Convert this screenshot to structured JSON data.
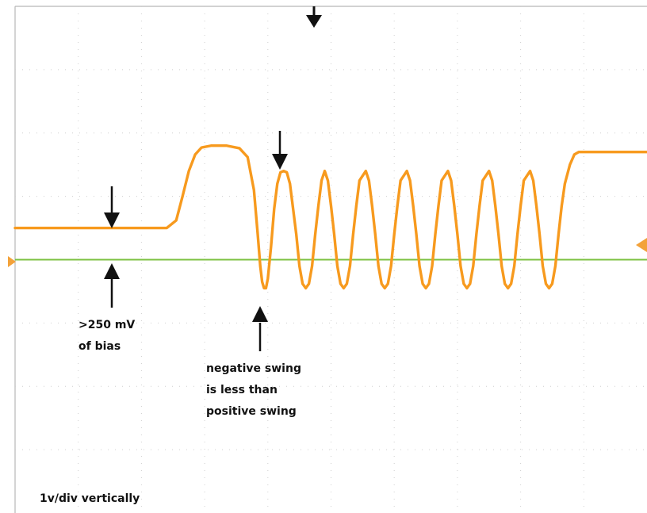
{
  "chart_data": {
    "type": "line",
    "grid": true,
    "vertical_scale": "1v/div",
    "x_range": [
      0,
      10
    ],
    "y_range": [
      -4,
      4
    ],
    "series": [
      {
        "color": "#f79a1e",
        "points": [
          [
            0.0,
            0.5
          ],
          [
            0.5,
            0.5
          ],
          [
            1.0,
            0.5
          ],
          [
            1.5,
            0.5
          ],
          [
            2.0,
            0.5
          ],
          [
            2.4,
            0.5
          ],
          [
            2.55,
            0.62
          ],
          [
            2.65,
            1.0
          ],
          [
            2.75,
            1.4
          ],
          [
            2.85,
            1.66
          ],
          [
            2.95,
            1.77
          ],
          [
            3.1,
            1.8
          ],
          [
            3.35,
            1.8
          ],
          [
            3.55,
            1.76
          ],
          [
            3.68,
            1.62
          ],
          [
            3.78,
            1.1
          ],
          [
            3.84,
            0.4
          ],
          [
            3.88,
            -0.1
          ],
          [
            3.91,
            -0.35
          ],
          [
            3.94,
            -0.45
          ],
          [
            3.97,
            -0.45
          ],
          [
            4.0,
            -0.3
          ],
          [
            4.05,
            0.2
          ],
          [
            4.1,
            0.8
          ],
          [
            4.15,
            1.2
          ],
          [
            4.2,
            1.38
          ],
          [
            4.25,
            1.4
          ],
          [
            4.3,
            1.38
          ],
          [
            4.35,
            1.2
          ],
          [
            4.4,
            0.8
          ],
          [
            4.45,
            0.4
          ],
          [
            4.5,
            -0.1
          ],
          [
            4.55,
            -0.38
          ],
          [
            4.6,
            -0.45
          ],
          [
            4.65,
            -0.38
          ],
          [
            4.7,
            -0.1
          ],
          [
            4.75,
            0.4
          ],
          [
            4.8,
            0.85
          ],
          [
            4.85,
            1.25
          ],
          [
            4.9,
            1.4
          ],
          [
            4.95,
            1.25
          ],
          [
            5.0,
            0.85
          ],
          [
            5.05,
            0.4
          ],
          [
            5.1,
            -0.1
          ],
          [
            5.15,
            -0.38
          ],
          [
            5.2,
            -0.45
          ],
          [
            5.25,
            -0.38
          ],
          [
            5.3,
            -0.1
          ],
          [
            5.35,
            0.4
          ],
          [
            5.4,
            0.85
          ],
          [
            5.45,
            1.25
          ],
          [
            5.55,
            1.4
          ],
          [
            5.6,
            1.25
          ],
          [
            5.65,
            0.85
          ],
          [
            5.7,
            0.4
          ],
          [
            5.75,
            -0.1
          ],
          [
            5.8,
            -0.38
          ],
          [
            5.85,
            -0.45
          ],
          [
            5.9,
            -0.38
          ],
          [
            5.95,
            -0.1
          ],
          [
            6.0,
            0.4
          ],
          [
            6.05,
            0.85
          ],
          [
            6.1,
            1.25
          ],
          [
            6.2,
            1.4
          ],
          [
            6.25,
            1.25
          ],
          [
            6.3,
            0.85
          ],
          [
            6.35,
            0.4
          ],
          [
            6.4,
            -0.1
          ],
          [
            6.45,
            -0.38
          ],
          [
            6.5,
            -0.45
          ],
          [
            6.55,
            -0.38
          ],
          [
            6.6,
            -0.1
          ],
          [
            6.65,
            0.4
          ],
          [
            6.7,
            0.85
          ],
          [
            6.75,
            1.25
          ],
          [
            6.85,
            1.4
          ],
          [
            6.9,
            1.25
          ],
          [
            6.95,
            0.85
          ],
          [
            7.0,
            0.4
          ],
          [
            7.05,
            -0.1
          ],
          [
            7.1,
            -0.38
          ],
          [
            7.15,
            -0.45
          ],
          [
            7.2,
            -0.38
          ],
          [
            7.25,
            -0.1
          ],
          [
            7.3,
            0.4
          ],
          [
            7.35,
            0.85
          ],
          [
            7.4,
            1.25
          ],
          [
            7.5,
            1.4
          ],
          [
            7.55,
            1.25
          ],
          [
            7.6,
            0.85
          ],
          [
            7.65,
            0.4
          ],
          [
            7.7,
            -0.1
          ],
          [
            7.75,
            -0.38
          ],
          [
            7.8,
            -0.45
          ],
          [
            7.85,
            -0.38
          ],
          [
            7.9,
            -0.1
          ],
          [
            7.95,
            0.4
          ],
          [
            8.0,
            0.85
          ],
          [
            8.05,
            1.25
          ],
          [
            8.15,
            1.4
          ],
          [
            8.2,
            1.25
          ],
          [
            8.25,
            0.85
          ],
          [
            8.3,
            0.4
          ],
          [
            8.35,
            -0.1
          ],
          [
            8.4,
            -0.38
          ],
          [
            8.45,
            -0.45
          ],
          [
            8.5,
            -0.38
          ],
          [
            8.55,
            -0.1
          ],
          [
            8.6,
            0.4
          ],
          [
            8.65,
            0.85
          ],
          [
            8.7,
            1.2
          ],
          [
            8.78,
            1.5
          ],
          [
            8.85,
            1.66
          ],
          [
            8.92,
            1.7
          ],
          [
            9.2,
            1.7
          ],
          [
            9.6,
            1.7
          ],
          [
            10.0,
            1.7
          ]
        ]
      },
      {
        "color": "#7cc242",
        "points": [
          [
            0,
            0
          ],
          [
            10,
            0
          ]
        ]
      }
    ],
    "annotations": {
      "bias_label": [
        ">250 mV",
        "of bias"
      ],
      "swing_label": [
        "negative swing",
        "is less than",
        "positive swing"
      ],
      "scale_label": "1v/div vertically"
    }
  }
}
